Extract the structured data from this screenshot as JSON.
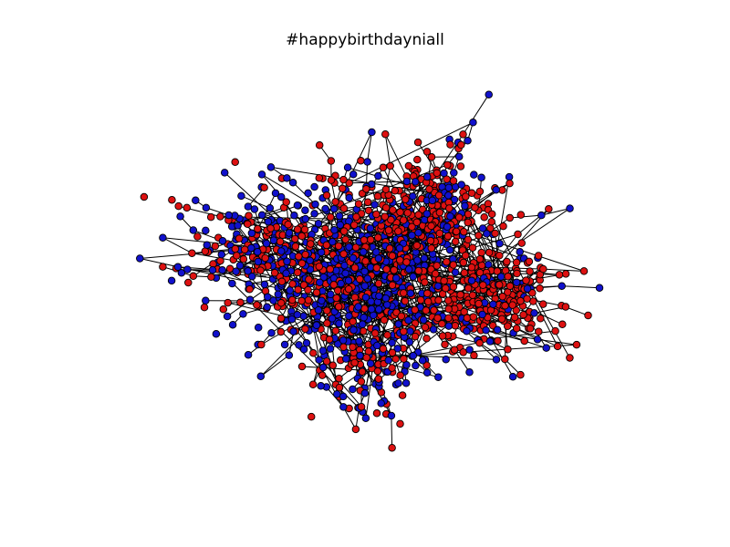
{
  "figure": {
    "title": "#happybirthdayniall"
  },
  "legend": {
    "node_colors": [
      "#dd1111",
      "#1111cc"
    ],
    "edge_color": "#000000",
    "node_stroke": "#000000"
  }
}
